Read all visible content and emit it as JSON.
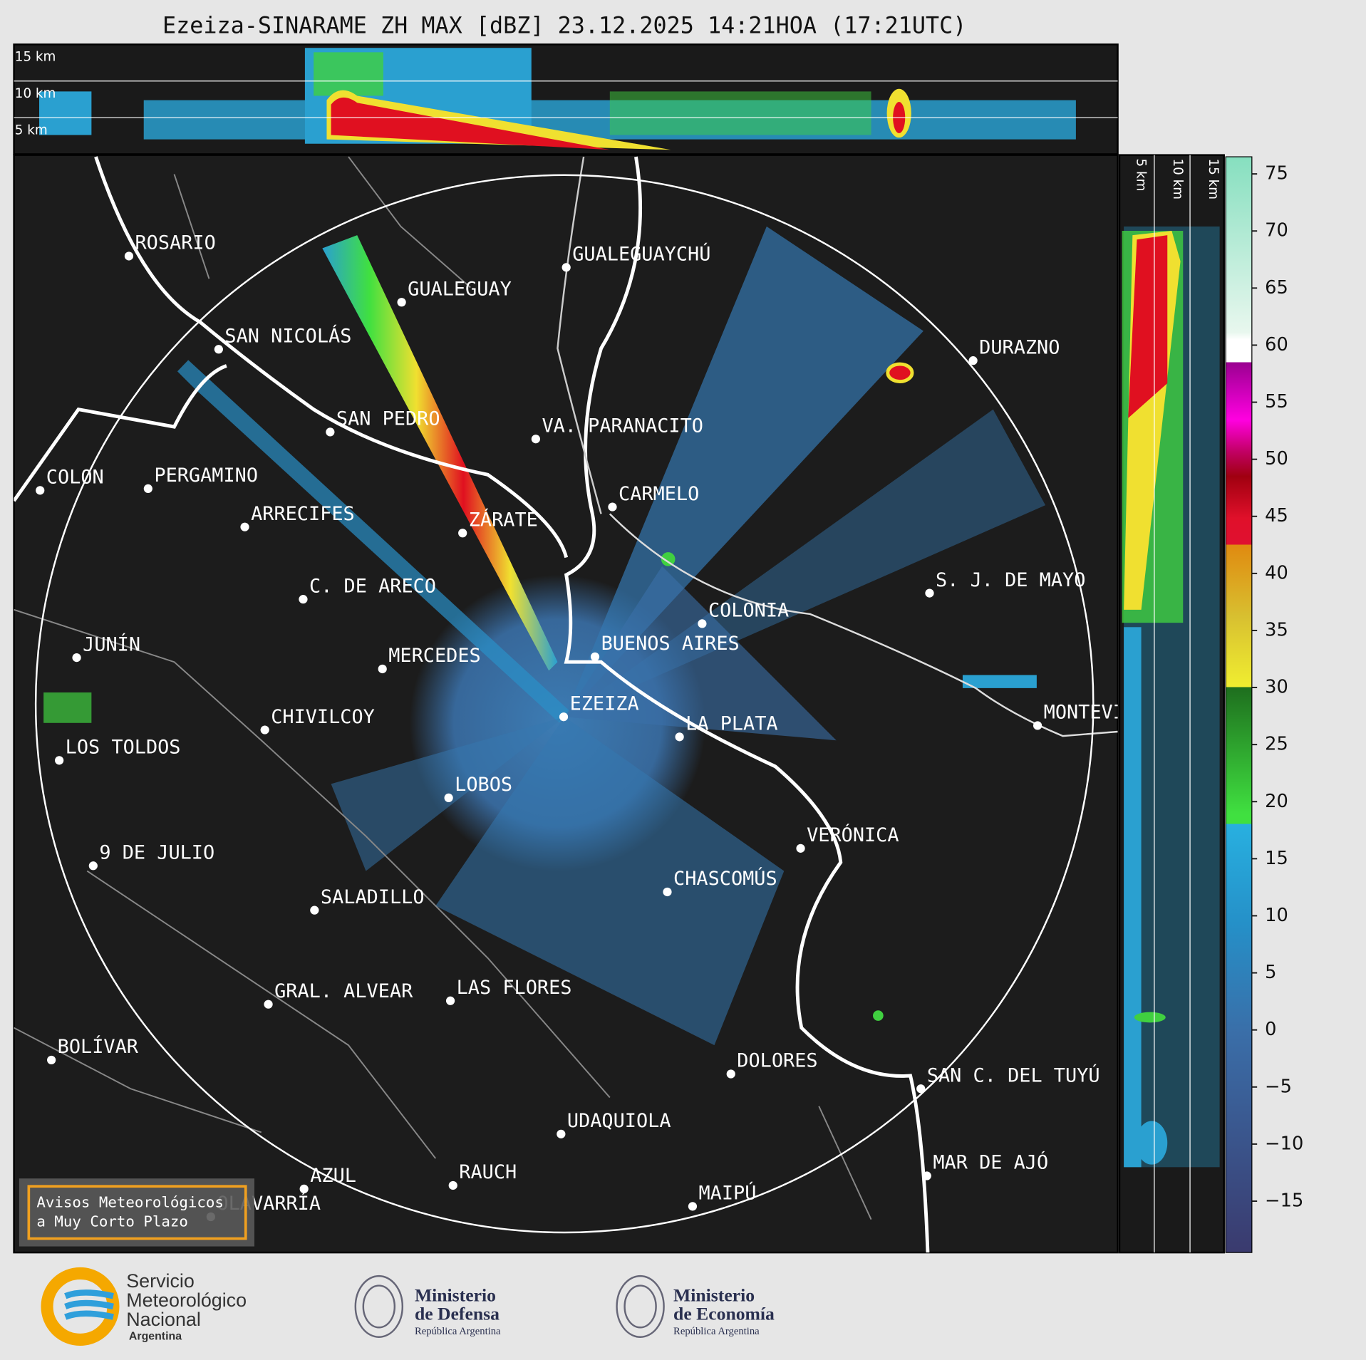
{
  "title": "Ezeiza-SINARAME ZH MAX [dBZ] 23.12.2025 14:21HOA (17:21UTC)",
  "top_section": {
    "height_labels": [
      "15 km",
      "10 km",
      "5 km"
    ]
  },
  "side_section": {
    "height_labels": [
      "5 km",
      "10 km",
      "15 km"
    ]
  },
  "map": {
    "cities": [
      "ROSARIO",
      "GUALEGUAYCHÚ",
      "GUALEGUAY",
      "SAN NICOLÁS",
      "DURAZNO",
      "SAN PEDRO",
      "VA. PARANACITO",
      "COLON",
      "PERGAMINO",
      "CARMELO",
      "ARRECIFES",
      "ZÁRATE",
      "S. J. DE MAYO",
      "C. DE ARECO",
      "COLONIA",
      "BUENOS AIRES",
      "JUNÍN",
      "MERCEDES",
      "EZEIZA",
      "CHIVILCOY",
      "LA PLATA",
      "MONTEVIDEO",
      "LOS TOLDOS",
      "LOBOS",
      "VERÓNICA",
      "9 DE JULIO",
      "CHASCOMÚS",
      "SALADILLO",
      "GRAL. ALVEAR",
      "LAS FLORES",
      "BOLÍVAR",
      "DOLORES",
      "SAN C. DEL TUYÚ",
      "UDAQUIOLA",
      "MAR DE AJÓ",
      "AZUL",
      "RAUCH",
      "OLAVARRÍA",
      "MAIPÚ"
    ]
  },
  "colorbar": {
    "range": [
      -19.5,
      76.5
    ],
    "ticks": [
      75,
      70,
      65,
      60,
      55,
      50,
      45,
      40,
      35,
      30,
      25,
      20,
      15,
      10,
      5,
      0,
      {
        "value": -5,
        "label": "−5"
      },
      {
        "value": -10,
        "label": "−10"
      },
      {
        "value": -15,
        "label": "−15"
      }
    ]
  },
  "notice": {
    "lines": [
      "Avisos Meteorológicos",
      "a Muy Corto Plazo"
    ]
  },
  "footer": {
    "smn": {
      "lines": [
        "Servicio",
        "Meteorológico",
        "Nacional"
      ],
      "country": "Argentina"
    },
    "defensa": {
      "lines": [
        "Ministerio",
        "de Defensa"
      ],
      "country": "República Argentina"
    },
    "economia": {
      "lines": [
        "Ministerio",
        "de Economía"
      ],
      "country": "República Argentina"
    }
  }
}
